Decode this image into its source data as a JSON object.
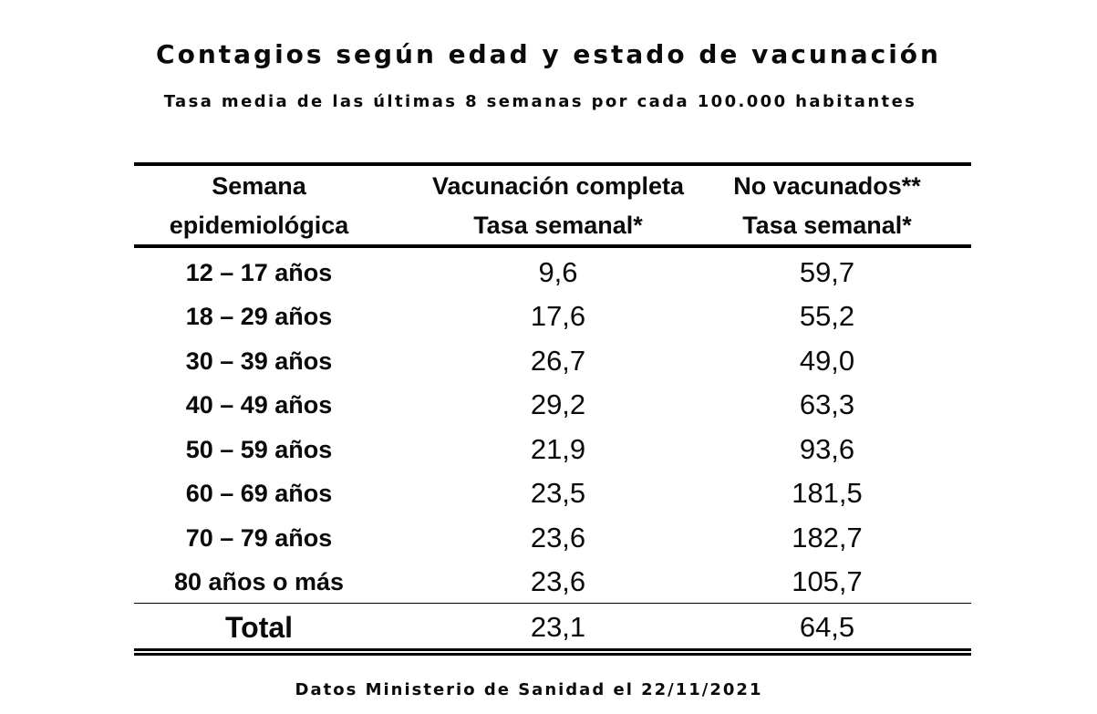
{
  "chart_data": {
    "type": "table",
    "title": "Contagios según edad y estado de vacunación",
    "subtitle": "Tasa media de las últimas 8 semanas por cada 100.000 habitantes",
    "columns": [
      {
        "line1": "Semana",
        "line2": "epidemiológica"
      },
      {
        "line1": "Vacunación completa",
        "line2": "Tasa semanal*"
      },
      {
        "line1": "No vacunados**",
        "line2": "Tasa semanal*"
      }
    ],
    "rows": [
      {
        "label": "12 – 17 años",
        "vaccinated": "9,6",
        "unvaccinated": "59,7"
      },
      {
        "label": "18 – 29 años",
        "vaccinated": "17,6",
        "unvaccinated": "55,2"
      },
      {
        "label": "30 – 39 años",
        "vaccinated": "26,7",
        "unvaccinated": "49,0"
      },
      {
        "label": "40 – 49 años",
        "vaccinated": "29,2",
        "unvaccinated": "63,3"
      },
      {
        "label": "50 – 59 años",
        "vaccinated": "21,9",
        "unvaccinated": "93,6"
      },
      {
        "label": "60 – 69 años",
        "vaccinated": "23,5",
        "unvaccinated": "181,5"
      },
      {
        "label": "70 – 79 años",
        "vaccinated": "23,6",
        "unvaccinated": "182,7"
      },
      {
        "label": "80 años o más",
        "vaccinated": "23,6",
        "unvaccinated": "105,7"
      }
    ],
    "total": {
      "label": "Total",
      "vaccinated": "23,1",
      "unvaccinated": "64,5"
    },
    "footer": "Datos Ministerio de Sanidad el 22/11/2021"
  }
}
